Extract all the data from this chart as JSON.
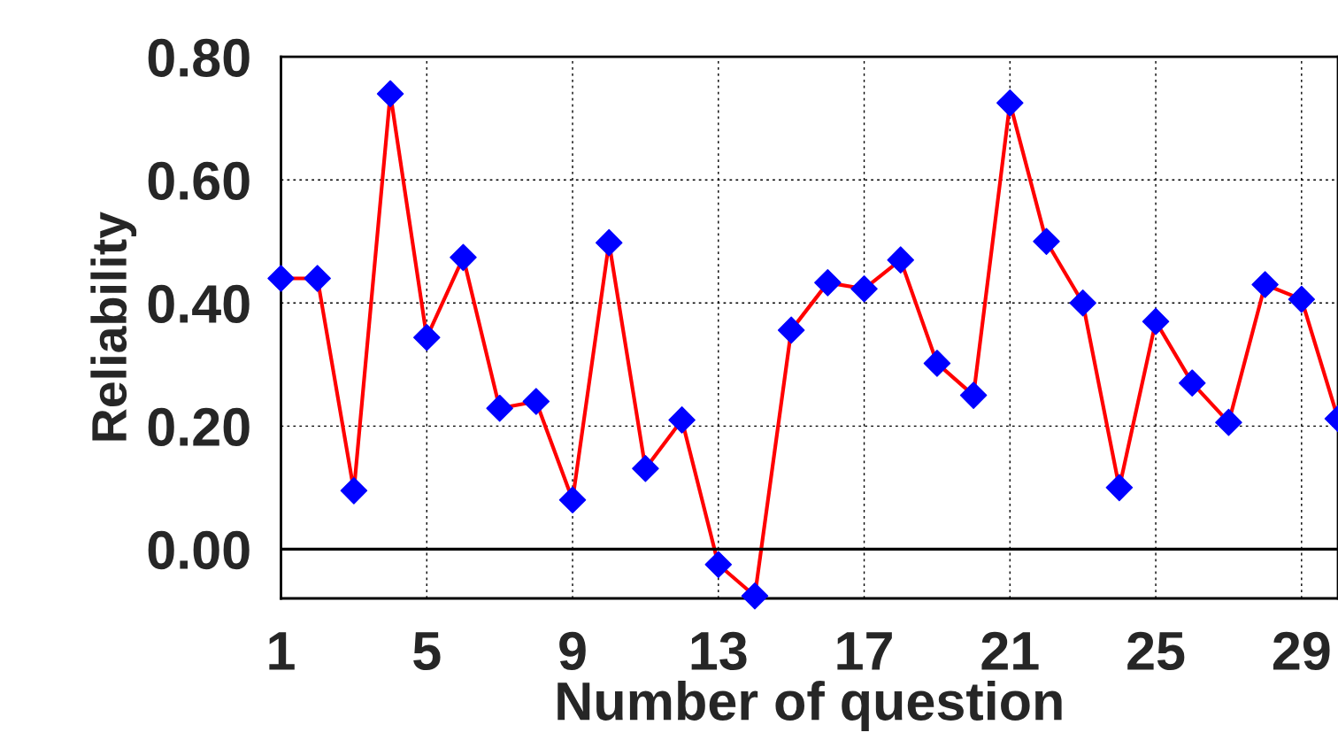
{
  "chart_data": {
    "type": "line",
    "xlabel": "Number of question",
    "ylabel": "Reliability",
    "x": [
      1,
      2,
      3,
      4,
      5,
      6,
      7,
      8,
      9,
      10,
      11,
      12,
      13,
      14,
      15,
      16,
      17,
      18,
      19,
      20,
      21,
      22,
      23,
      24,
      25,
      26,
      27,
      28,
      29,
      30
    ],
    "series": [
      {
        "color": "#ff0000",
        "colors": [
          "#0000ff",
          "#0000ff",
          "#0000ff",
          "#0000ff",
          "#0000ff",
          "#0000ff",
          "#0000ff",
          "#0000ff",
          "#0000ff",
          "#0000ff",
          "#0000ff",
          "#0000ff",
          "#0000ff",
          "#0000ff",
          "#0000ff",
          "#0000ff",
          "#0000ff",
          "#0000ff",
          "#0000ff",
          "#0000ff",
          "#0000ff",
          "#0000ff",
          "#0000ff",
          "#0000ff",
          "#0000ff",
          "#0000ff",
          "#0000ff",
          "#0000ff",
          "#0000ff",
          "#0000ff"
        ],
        "values": [
          0.44,
          0.44,
          0.095,
          0.74,
          0.344,
          0.474,
          0.229,
          0.24,
          0.08,
          0.498,
          0.131,
          0.21,
          -0.025,
          -0.076,
          0.356,
          0.433,
          0.423,
          0.47,
          0.302,
          0.25,
          0.725,
          0.5,
          0.4,
          0.1,
          0.37,
          0.27,
          0.206,
          0.43,
          0.406,
          0.212
        ]
      }
    ],
    "xlim": [
      1,
      30
    ],
    "xticks": [
      1,
      5,
      9,
      13,
      17,
      21,
      25,
      29
    ],
    "ylim": [
      -0.08,
      0.8
    ],
    "yticks": [
      {
        "value": 0,
        "label": "0.00"
      },
      {
        "value": 0.2,
        "label": "0.20"
      },
      {
        "value": 0.4,
        "label": "0.40"
      },
      {
        "value": 0.6,
        "label": "0.60"
      },
      {
        "value": 0.8,
        "label": "0.80"
      }
    ],
    "ref_lines": [
      {
        "axis": "y",
        "value": 0,
        "color": "#000000",
        "line_style": "solid"
      }
    ],
    "grid": true,
    "marker": "diamond",
    "line_style": "solid",
    "legend": false
  }
}
